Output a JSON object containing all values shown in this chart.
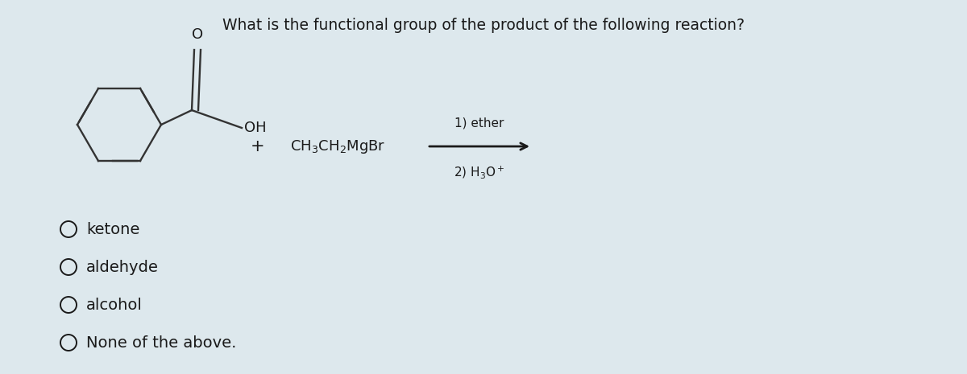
{
  "title": "What is the functional group of the product of the following reaction?",
  "title_fontsize": 13.5,
  "background_color": "#c8d4d8",
  "text_color": "#1a1a1a",
  "options": [
    "ketone",
    "aldehyde",
    "alcohol",
    "None of the above."
  ],
  "reagent_plus": "+",
  "reagent_formula": "CH$_3$CH$_2$MgBr",
  "condition1": "1) ether",
  "condition2": "2) H$_3$O$^+$",
  "oh_label": "OH",
  "o_label": "O",
  "bond_color": "#333333",
  "bond_lw": 1.7,
  "option_circle_r": 0.013
}
